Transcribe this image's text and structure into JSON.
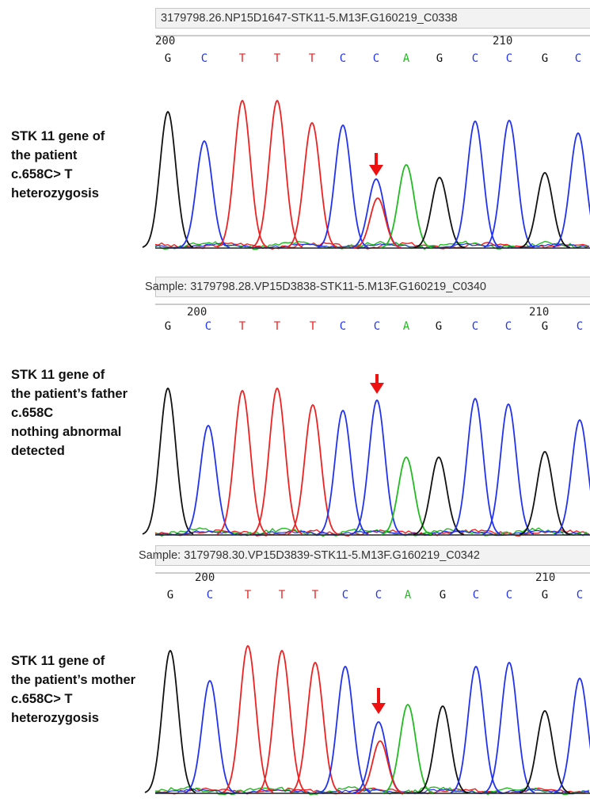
{
  "colors": {
    "A": "#22bb22",
    "C": "#2233ee",
    "G": "#111111",
    "T": "#ee2222",
    "arrow": "#ee1111"
  },
  "panels": [
    {
      "sample_label": "3179798.26.NP15D1647-STK11-5.M13F.G160219_C0338",
      "caption": [
        "STK 11 gene of",
        "the patient",
        "c.658C> T",
        "heterozygosis"
      ],
      "positions": [
        "200",
        "210"
      ],
      "bases": [
        "G",
        "C",
        "T",
        "T",
        "T",
        "C",
        "C",
        "A",
        "G",
        "C",
        "C",
        "G",
        "C"
      ],
      "arrow_base_index": 6
    },
    {
      "sample_label": "Sample: 3179798.28.VP15D3838-STK11-5.M13F.G160219_C0340",
      "caption": [
        "STK 11 gene of",
        "the patient’s father",
        "c.658C",
        "nothing abnormal",
        "detected"
      ],
      "positions": [
        "200",
        "210"
      ],
      "bases": [
        "G",
        "C",
        "T",
        "T",
        "T",
        "C",
        "C",
        "A",
        "G",
        "C",
        "C",
        "G",
        "C"
      ],
      "arrow_base_index": 6
    },
    {
      "sample_label": "Sample: 3179798.30.VP15D3839-STK11-5.M13F.G160219_C0342",
      "caption": [
        "STK 11 gene of",
        "the patient’s mother",
        "c.658C> T",
        "heterozygosis"
      ],
      "positions": [
        "200",
        "210"
      ],
      "bases": [
        "G",
        "C",
        "T",
        "T",
        "T",
        "C",
        "C",
        "A",
        "G",
        "C",
        "C",
        "G",
        "C"
      ],
      "arrow_base_index": 6
    }
  ]
}
